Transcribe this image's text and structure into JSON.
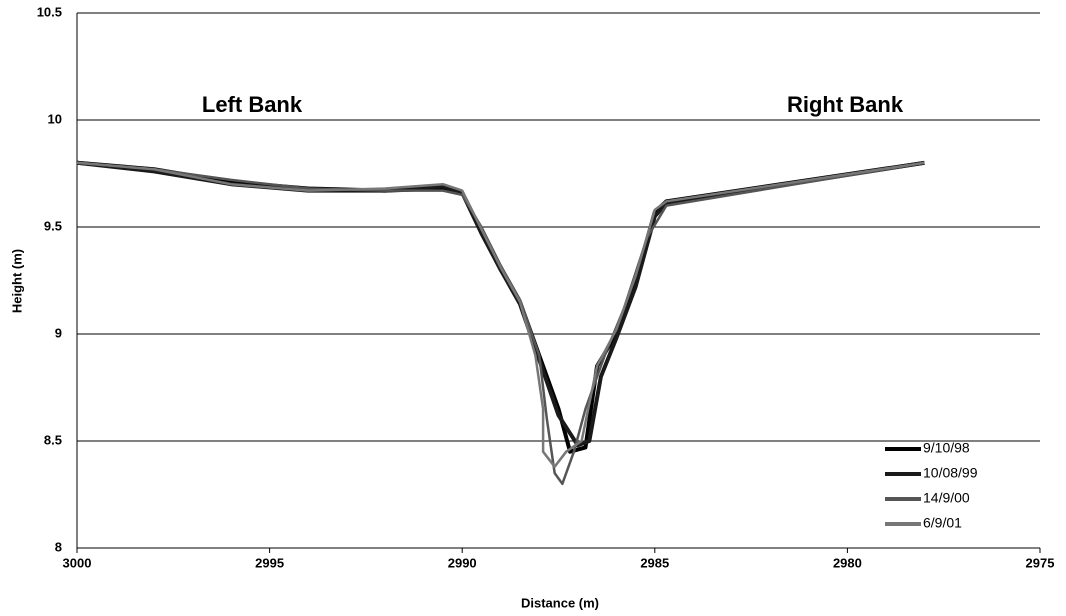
{
  "chart_data": {
    "type": "line",
    "xlabel": "Distance (m)",
    "ylabel": "Height (m)",
    "annotations": [
      "Left Bank",
      "Right Bank"
    ],
    "xlim": [
      3000,
      2975
    ],
    "xticks": [
      3000,
      2995,
      2990,
      2985,
      2980,
      2975
    ],
    "ylim": [
      8,
      10.5
    ],
    "yticks": [
      8,
      8.5,
      9,
      9.5,
      10,
      10.5
    ],
    "grid": true,
    "legend": "lower right",
    "series": [
      {
        "name": "9/10/98",
        "color": "#000000",
        "x": [
          3000,
          2998,
          2996,
          2994,
          2992,
          2990.5,
          2990,
          2989.5,
          2989,
          2988.5,
          2988,
          2987.5,
          2987.2,
          2986.8,
          2986.5,
          2986,
          2985.5,
          2985,
          2984.7,
          2978
        ],
        "values": [
          9.8,
          9.77,
          9.71,
          9.68,
          9.67,
          9.68,
          9.66,
          9.48,
          9.3,
          9.15,
          8.9,
          8.65,
          8.45,
          8.47,
          8.85,
          9.0,
          9.25,
          9.57,
          9.62,
          9.8
        ]
      },
      {
        "name": "10/08/99",
        "color": "#1a1a1a",
        "x": [
          3000,
          2998,
          2996,
          2994,
          2992,
          2990.5,
          2990,
          2989.5,
          2989,
          2988.5,
          2988,
          2987.5,
          2987,
          2986.7,
          2986.4,
          2986,
          2985.5,
          2985,
          2984.7,
          2978
        ],
        "values": [
          9.8,
          9.76,
          9.7,
          9.67,
          9.67,
          9.69,
          9.66,
          9.47,
          9.3,
          9.14,
          8.88,
          8.62,
          8.48,
          8.5,
          8.8,
          8.98,
          9.22,
          9.55,
          9.61,
          9.8
        ]
      },
      {
        "name": "14/9/00",
        "color": "#555555",
        "x": [
          3000,
          2998,
          2996,
          2994,
          2992,
          2990.5,
          2990,
          2989.5,
          2989,
          2988.5,
          2988,
          2987.8,
          2987.6,
          2987.4,
          2987.1,
          2986.8,
          2986.3,
          2985.8,
          2985.2,
          2984.7,
          2978
        ],
        "values": [
          9.8,
          9.77,
          9.72,
          9.68,
          9.67,
          9.67,
          9.65,
          9.5,
          9.32,
          9.16,
          8.9,
          8.6,
          8.35,
          8.3,
          8.45,
          8.65,
          8.9,
          9.12,
          9.45,
          9.6,
          9.8
        ]
      },
      {
        "name": "6/9/01",
        "color": "#777777",
        "x": [
          3000,
          2998,
          2996,
          2994,
          2992,
          2990.5,
          2990,
          2989.5,
          2989,
          2988.5,
          2988.1,
          2987.9,
          2987.9,
          2987.6,
          2987.3,
          2986.9,
          2986.5,
          2986,
          2985.5,
          2985,
          2984.7,
          2978
        ],
        "values": [
          9.8,
          9.77,
          9.7,
          9.67,
          9.68,
          9.7,
          9.67,
          9.49,
          9.31,
          9.15,
          8.9,
          8.65,
          8.45,
          8.38,
          8.45,
          8.5,
          8.85,
          9.02,
          9.27,
          9.58,
          9.62,
          9.8
        ]
      }
    ]
  }
}
